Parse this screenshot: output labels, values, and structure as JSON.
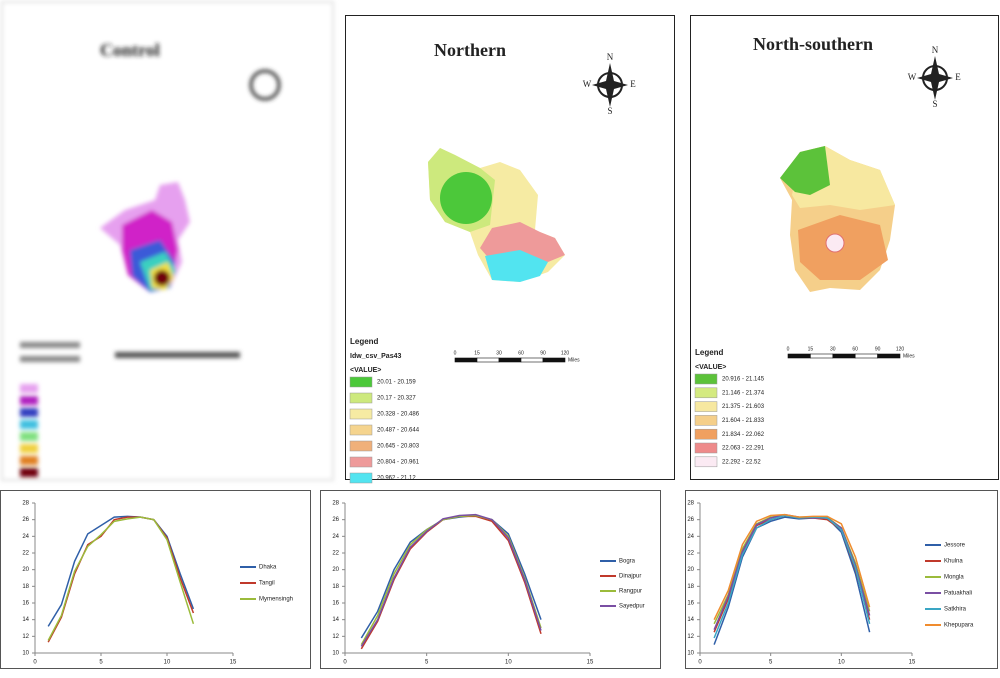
{
  "maps": [
    {
      "title": "Control"
    },
    {
      "title": "Northern",
      "compass": [
        "N",
        "E",
        "S",
        "W"
      ],
      "legend_title": "Legend",
      "legend_layer": "Idw_csv_Pas43",
      "legend_field": "<VALUE>",
      "legend_items": [
        {
          "label": "20.01 - 20.159",
          "color": "#4cc83a"
        },
        {
          "label": "20.17 - 20.327",
          "color": "#cde97d"
        },
        {
          "label": "20.328 - 20.486",
          "color": "#f6eba3"
        },
        {
          "label": "20.487 - 20.644",
          "color": "#f5d48e"
        },
        {
          "label": "20.645 - 20.803",
          "color": "#f0b07a"
        },
        {
          "label": "20.804 - 20.961",
          "color": "#ee9a9a"
        },
        {
          "label": "20.962 - 21.12",
          "color": "#52e4f0"
        }
      ],
      "scale_labels": [
        "0",
        "15",
        "30",
        "60",
        "90",
        "120",
        "Miles"
      ]
    },
    {
      "title": "North-southern",
      "compass": [
        "N",
        "E",
        "S",
        "W"
      ],
      "legend_title": "Legend",
      "legend_field": "<VALUE>",
      "legend_items": [
        {
          "label": "20.916 - 21.145",
          "color": "#5cc23a"
        },
        {
          "label": "21.146 - 21.374",
          "color": "#d4ea80"
        },
        {
          "label": "21.375 - 21.603",
          "color": "#f7e8a0"
        },
        {
          "label": "21.604 - 21.833",
          "color": "#f5cf8a"
        },
        {
          "label": "21.834 - 22.062",
          "color": "#f0a060"
        },
        {
          "label": "22.063 - 22.291",
          "color": "#ee8a8a"
        },
        {
          "label": "22.292 - 22.52",
          "color": "#fbeaf3"
        }
      ],
      "scale_labels": [
        "0",
        "15",
        "30",
        "60",
        "90",
        "120",
        "Miles"
      ]
    }
  ],
  "chart_data": [
    {
      "type": "line",
      "x": [
        1,
        2,
        3,
        4,
        5,
        6,
        7,
        8,
        9,
        10,
        11,
        12
      ],
      "xlim": [
        0,
        15
      ],
      "xticks": [
        0,
        5,
        10,
        15
      ],
      "ylim": [
        10,
        28
      ],
      "yticks": [
        10,
        12,
        14,
        16,
        18,
        20,
        22,
        24,
        26,
        28
      ],
      "series": [
        {
          "name": "Dhaka",
          "color": "#2f5fa8",
          "values": [
            13.2,
            15.8,
            21,
            24.3,
            25.3,
            26.3,
            26.4,
            26.3,
            26,
            24,
            19.5,
            15.3
          ]
        },
        {
          "name": "Tangil",
          "color": "#c0392b",
          "values": [
            11.3,
            14.3,
            19.5,
            23,
            24,
            26,
            26.3,
            26.3,
            26,
            23.8,
            19,
            14.8
          ]
        },
        {
          "name": "Mymensingh",
          "color": "#9bbb3b",
          "values": [
            11.5,
            14.5,
            19.8,
            22.8,
            24.2,
            25.8,
            26.1,
            26.3,
            26,
            23.6,
            18.5,
            13.5
          ]
        }
      ]
    },
    {
      "type": "line",
      "x": [
        1,
        2,
        3,
        4,
        5,
        6,
        7,
        8,
        9,
        10,
        11,
        12
      ],
      "xlim": [
        0,
        15
      ],
      "xticks": [
        0,
        5,
        10,
        15
      ],
      "ylim": [
        10,
        28
      ],
      "yticks": [
        10,
        12,
        14,
        16,
        18,
        20,
        22,
        24,
        26,
        28
      ],
      "series": [
        {
          "name": "Bogra",
          "color": "#2f5fa8",
          "values": [
            11.8,
            15,
            20,
            23.3,
            24.8,
            26,
            26.3,
            26.5,
            26,
            24.3,
            19.5,
            14
          ]
        },
        {
          "name": "Dinajpur",
          "color": "#c0392b",
          "values": [
            10.5,
            13.8,
            18.8,
            22.5,
            24.5,
            26,
            26.4,
            26.4,
            25.8,
            23.5,
            18.5,
            12.3
          ]
        },
        {
          "name": "Rangpur",
          "color": "#9bbb3b",
          "values": [
            11,
            14.5,
            19.5,
            23,
            24.8,
            26,
            26.4,
            26.5,
            26,
            24,
            19,
            13
          ]
        },
        {
          "name": "Sayedpur",
          "color": "#7a4fa3",
          "values": [
            10.8,
            14,
            19,
            22.7,
            24.6,
            26.1,
            26.5,
            26.6,
            26,
            23.8,
            18.8,
            12.7
          ]
        }
      ]
    },
    {
      "type": "line",
      "x": [
        1,
        2,
        3,
        4,
        5,
        6,
        7,
        8,
        9,
        10,
        11,
        12
      ],
      "xlim": [
        0,
        15
      ],
      "xticks": [
        0,
        5,
        10,
        15
      ],
      "ylim": [
        10,
        28
      ],
      "yticks": [
        10,
        12,
        14,
        16,
        18,
        20,
        22,
        24,
        26,
        28
      ],
      "series": [
        {
          "name": "Jessore",
          "color": "#2f5fa8",
          "values": [
            11,
            15.5,
            21.5,
            25,
            25.8,
            26.3,
            26.1,
            26.2,
            26.2,
            24.5,
            19.5,
            12.5
          ]
        },
        {
          "name": "Khulna",
          "color": "#c0392b",
          "values": [
            12.5,
            16.5,
            22,
            25.3,
            26,
            26.5,
            26.2,
            26.2,
            26,
            24.8,
            20,
            14
          ]
        },
        {
          "name": "Mongla",
          "color": "#9bbb3b",
          "values": [
            13.5,
            17,
            22.5,
            25.5,
            26.3,
            26.5,
            26.3,
            26.3,
            26.3,
            25,
            20.8,
            15
          ]
        },
        {
          "name": "Patuakhali",
          "color": "#7a4fa3",
          "values": [
            12.8,
            16.8,
            22.2,
            25.4,
            26.2,
            26.6,
            26.3,
            26.2,
            26.2,
            25,
            20.5,
            14.5
          ]
        },
        {
          "name": "Satkhira",
          "color": "#3aa6c4",
          "values": [
            11.8,
            16,
            21.8,
            25,
            26,
            26.5,
            26.2,
            26.3,
            26.2,
            24.8,
            20.2,
            13.5
          ]
        },
        {
          "name": "Khepupara",
          "color": "#f08c2e",
          "values": [
            14,
            17.5,
            23,
            25.8,
            26.5,
            26.6,
            26.3,
            26.4,
            26.4,
            25.5,
            21.5,
            15.5
          ]
        }
      ]
    }
  ]
}
